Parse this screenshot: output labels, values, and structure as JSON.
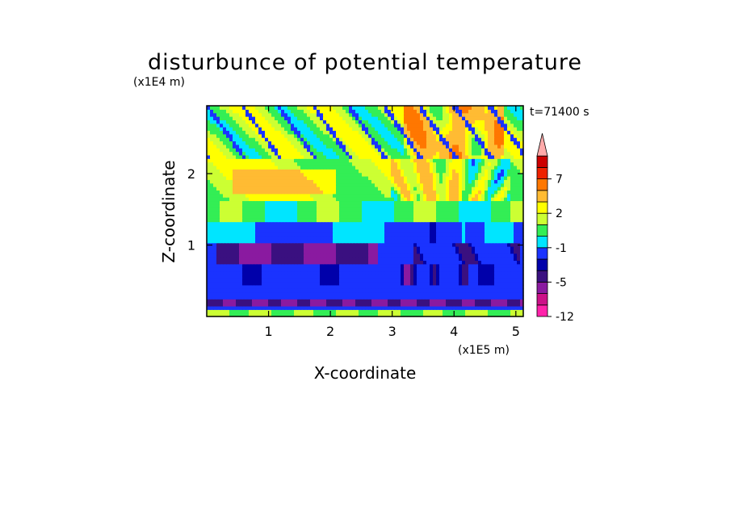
{
  "chart_data": {
    "type": "heatmap",
    "title": "disturbunce of potential temperature",
    "xlabel": "X-coordinate",
    "ylabel": "Z-coordinate",
    "x_unit": "(x1E5 m)",
    "y_unit": "(x1E4 m)",
    "time_label": "t=71400 s",
    "xlim": [
      0,
      5.12
    ],
    "ylim": [
      0,
      2.95
    ],
    "x_ticks": [
      "1",
      "2",
      "3",
      "4",
      "5"
    ],
    "y_ticks": [
      "1",
      "2"
    ],
    "x_tick_values": [
      1,
      2,
      3,
      4,
      5
    ],
    "y_tick_values": [
      1,
      2
    ],
    "colorbar": {
      "levels": [
        -12,
        -9,
        -7,
        -5,
        -4,
        -3,
        -1,
        0,
        1,
        2,
        3,
        5,
        7,
        9,
        12
      ],
      "labels": [
        "-12",
        "-5",
        "-1",
        "2",
        "7"
      ],
      "label_levels": [
        -12,
        -5,
        -1,
        2,
        7
      ],
      "colors": [
        "#ff22aa",
        "#cc1188",
        "#8a1aa0",
        "#3a1080",
        "#0000aa",
        "#1a33ff",
        "#00e5ff",
        "#33ee55",
        "#ccff33",
        "#ffff00",
        "#ffbb33",
        "#ff7700",
        "#ee2200",
        "#cc0000",
        "#ffaaaa"
      ],
      "extend": "max"
    },
    "field_description": [
      {
        "z_range": [
          0.0,
          0.08
        ],
        "value": 1
      },
      {
        "z_range": [
          0.15,
          0.25
        ],
        "value": -5
      },
      {
        "z_range": [
          0.25,
          0.75
        ],
        "value": -2
      },
      {
        "z_range": [
          0.75,
          1.05
        ],
        "value": -5
      },
      {
        "z_range": [
          1.05,
          1.35
        ],
        "value": -1
      },
      {
        "z_range": [
          1.35,
          1.55
        ],
        "value": 0
      },
      {
        "z_range": [
          1.55,
          2.2
        ],
        "value": 2
      },
      {
        "z_range": [
          2.2,
          2.95
        ],
        "value": 1
      }
    ]
  }
}
